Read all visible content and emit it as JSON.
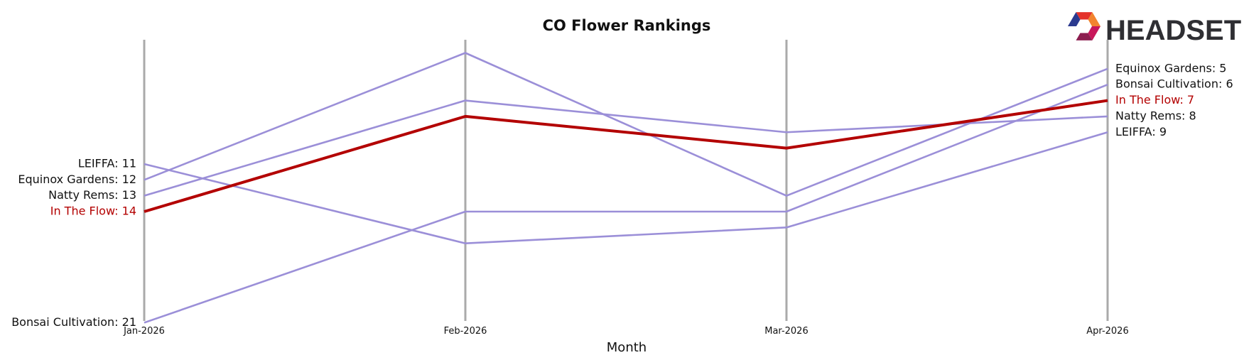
{
  "chart_data": {
    "type": "line",
    "title": "CO Flower Rankings",
    "xlabel": "Month",
    "ylabel": "",
    "x": [
      "Jan-2026",
      "Feb-2026",
      "Mar-2026",
      "Apr-2026"
    ],
    "y_inverted": true,
    "ylim": [
      22,
      4
    ],
    "grid": "vertical",
    "highlight_color": "#b30000",
    "base_color": "#9b8fd8",
    "axis_line_color": "#aaaaaa",
    "series": [
      {
        "name": "LEIFFA",
        "values": [
          11,
          16,
          15,
          9
        ],
        "highlight": false
      },
      {
        "name": "Equinox Gardens",
        "values": [
          12,
          4,
          13,
          5
        ],
        "highlight": false
      },
      {
        "name": "Natty Rems",
        "values": [
          13,
          7,
          9,
          8
        ],
        "highlight": false
      },
      {
        "name": "Bonsai Cultivation",
        "values": [
          21,
          14,
          14,
          6
        ],
        "highlight": false
      },
      {
        "name": "In The Flow",
        "values": [
          14,
          8,
          10,
          7
        ],
        "highlight": true
      }
    ]
  },
  "logo": {
    "text": "HEADSET",
    "colors": [
      "#e4322b",
      "#f2842f",
      "#c8175b",
      "#8c1d4f",
      "#6a2c91",
      "#2b3a8f"
    ]
  }
}
